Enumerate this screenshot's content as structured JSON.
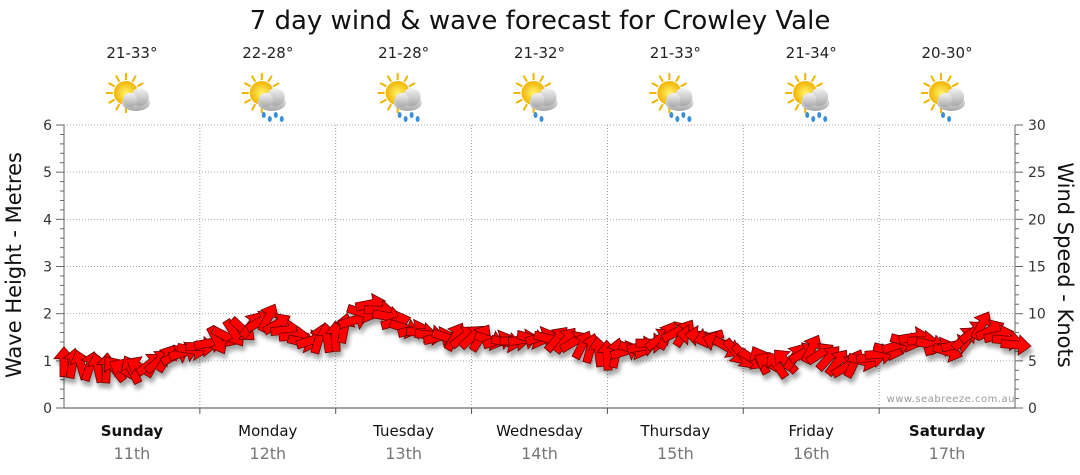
{
  "chart_data": {
    "type": "line",
    "title": "7 day wind & wave forecast for Crowley Vale",
    "ylabel_left": "Wave Height - Metres",
    "ylabel_right": "Wind Speed - Knots",
    "ylim_left": [
      0,
      6
    ],
    "ylim_right": [
      0,
      30
    ],
    "yticks_left": [
      "0",
      "1",
      "2",
      "3",
      "4",
      "5",
      "6"
    ],
    "yticks_right": [
      "0",
      "5",
      "10",
      "15",
      "20",
      "25",
      "30"
    ],
    "grid": true,
    "days": [
      {
        "name": "Sunday",
        "date": "11th",
        "bold": true,
        "temp": "21-33°",
        "weather": "partly-cloudy-icon"
      },
      {
        "name": "Monday",
        "date": "12th",
        "bold": false,
        "temp": "22-28°",
        "weather": "shower-icon"
      },
      {
        "name": "Tuesday",
        "date": "13th",
        "bold": false,
        "temp": "21-28°",
        "weather": "shower-icon"
      },
      {
        "name": "Wednesday",
        "date": "14th",
        "bold": false,
        "temp": "21-32°",
        "weather": "light-shower-icon"
      },
      {
        "name": "Thursday",
        "date": "15th",
        "bold": false,
        "temp": "21-33°",
        "weather": "shower-icon"
      },
      {
        "name": "Friday",
        "date": "16th",
        "bold": false,
        "temp": "21-34°",
        "weather": "shower-icon"
      },
      {
        "name": "Saturday",
        "date": "17th",
        "bold": true,
        "temp": "20-30°",
        "weather": "light-shower-icon"
      }
    ],
    "series": [
      {
        "name": "Wind Speed - Knots",
        "axis": "right",
        "color": "#ff0000",
        "x_hours": [
          0,
          6,
          12,
          18,
          24,
          30,
          36,
          42,
          48,
          54,
          60,
          66,
          72,
          78,
          84,
          90,
          96,
          102,
          108,
          114,
          120,
          126,
          132,
          138,
          144,
          150,
          156,
          162,
          168
        ],
        "values": [
          4.8,
          4.2,
          4,
          5.2,
          6.5,
          8,
          9.5,
          7,
          7.5,
          11,
          8.5,
          7.5,
          7.5,
          7,
          7.5,
          7,
          5.5,
          6.5,
          8,
          7.5,
          5.5,
          4.5,
          6.2,
          4.3,
          5.7,
          7.5,
          6,
          8.7,
          6.7
        ],
        "directions": [
          "S",
          "S",
          "SE",
          "SW",
          "W",
          "NW",
          "SW",
          "W",
          "S",
          "W",
          "W",
          "W",
          "SW",
          "W",
          "W",
          "SW",
          "S",
          "W",
          "SW",
          "E",
          "NW",
          "SE",
          "SW",
          "SW",
          "W",
          "W",
          "W",
          "SW",
          "W"
        ]
      }
    ],
    "watermark": "www.seabreeze.com.au"
  }
}
